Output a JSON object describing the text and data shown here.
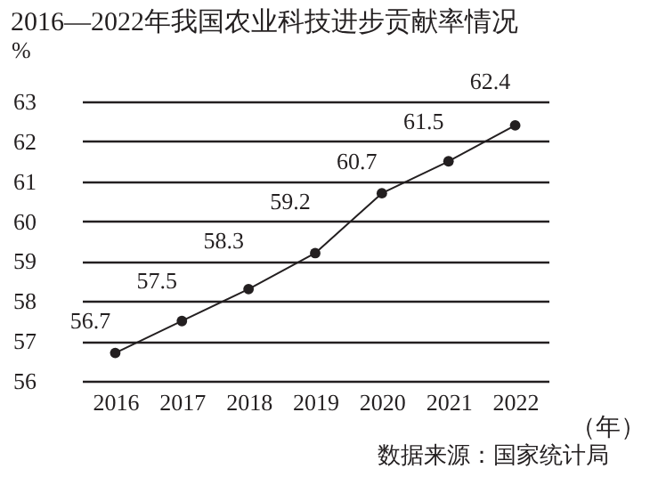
{
  "chart_data": {
    "type": "line",
    "title": "2016—2022年我国农业科技进步贡献率情况",
    "ylabel": "%",
    "xlabel": "（年）",
    "annotations": [
      "数据来源：国家统计局"
    ],
    "categories": [
      "2016",
      "2017",
      "2018",
      "2019",
      "2020",
      "2021",
      "2022"
    ],
    "series": [
      {
        "color": "#231f20",
        "values": [
          56.7,
          57.5,
          58.3,
          59.2,
          60.7,
          61.5,
          62.4
        ]
      }
    ],
    "ylim": [
      56,
      63
    ],
    "yticks": [
      56,
      57,
      58,
      59,
      60,
      61,
      62,
      63
    ],
    "grid": "y",
    "marker": "circle",
    "line_style": "solid",
    "data_labels": true
  }
}
